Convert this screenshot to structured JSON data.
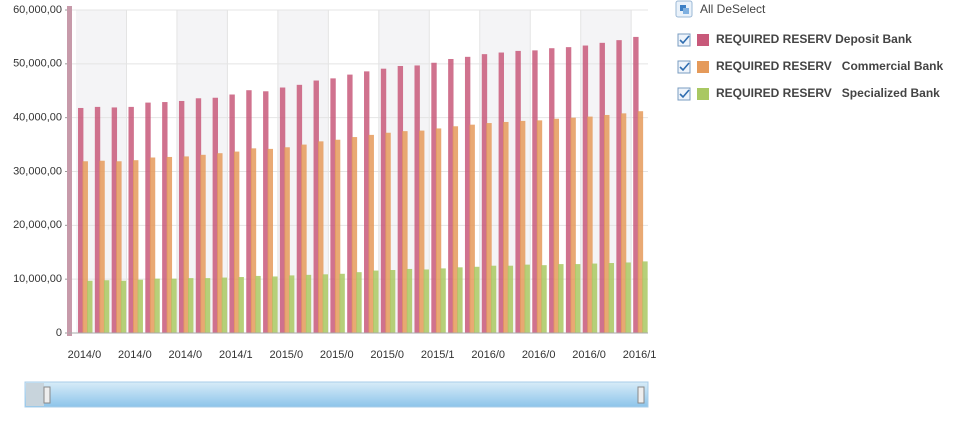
{
  "chart_data": {
    "type": "bar",
    "categories": [
      "2014/0",
      null,
      null,
      "2014/0",
      null,
      null,
      "2014/0",
      null,
      null,
      "2014/1",
      null,
      null,
      "2015/0",
      null,
      null,
      "2015/0",
      null,
      null,
      "2015/0",
      null,
      null,
      "2015/1",
      null,
      null,
      "2016/0",
      null,
      null,
      "2016/0",
      null,
      null,
      "2016/0",
      null,
      null,
      "2016/1"
    ],
    "series": [
      {
        "name": "REQUIRED RESERV Deposit Bank",
        "color": "#c8597a",
        "values": [
          41800,
          42000,
          41900,
          42000,
          42800,
          42900,
          43100,
          43600,
          43700,
          44300,
          45100,
          44900,
          45600,
          46100,
          46900,
          47300,
          48000,
          48600,
          49100,
          49600,
          49700,
          50200,
          50900,
          51300,
          51800,
          52100,
          52400,
          52500,
          52900,
          53100,
          53400,
          53900,
          54400,
          55000
        ]
      },
      {
        "name": "REQUIRED RESERV   Commercial Bank",
        "color": "#e59a5a",
        "values": [
          31900,
          32000,
          31900,
          32100,
          32600,
          32700,
          32800,
          33100,
          33400,
          33700,
          34300,
          34200,
          34500,
          35000,
          35600,
          35900,
          36400,
          36800,
          37200,
          37500,
          37600,
          38000,
          38400,
          38700,
          39000,
          39200,
          39400,
          39500,
          39800,
          40000,
          40200,
          40500,
          40800,
          41200
        ]
      },
      {
        "name": "REQUIRED RESERV   Specialized Bank",
        "color": "#a9c862",
        "values": [
          9700,
          9800,
          9700,
          9900,
          10100,
          10100,
          10200,
          10200,
          10300,
          10400,
          10600,
          10500,
          10700,
          10800,
          10900,
          11000,
          11300,
          11600,
          11700,
          11900,
          11800,
          12000,
          12200,
          12300,
          12500,
          12500,
          12700,
          12600,
          12800,
          12800,
          12900,
          13000,
          13100,
          13300
        ]
      }
    ],
    "ylim": [
      0,
      60000
    ],
    "yticks": [
      0,
      {
        "value": 10000,
        "label": "10,000,00"
      },
      {
        "value": 20000,
        "label": "20,000,00"
      },
      {
        "value": 30000,
        "label": "30,000,00"
      },
      {
        "value": 40000,
        "label": "40,000,00"
      },
      {
        "value": 50000,
        "label": "50,000,00"
      },
      {
        "value": 60000,
        "label": "60,000,00"
      }
    ],
    "grid": true,
    "legend_button": "All DeSelect"
  }
}
